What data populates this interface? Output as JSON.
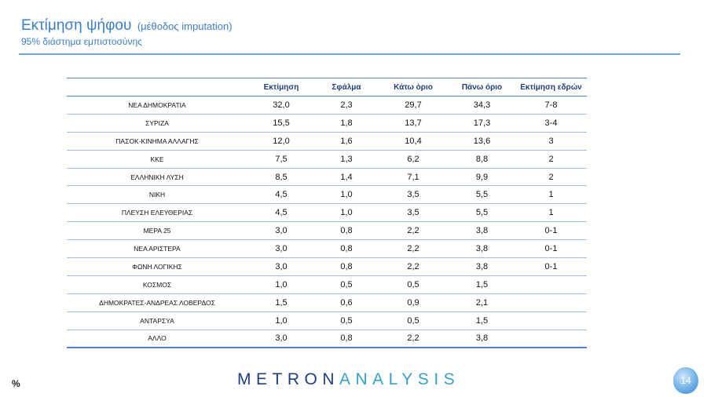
{
  "header": {
    "title": "Εκτίμηση ψήφου",
    "title_note": "(μέθοδος imputation)",
    "subtitle": "95% διάστημα εμπιστοσύνης"
  },
  "table": {
    "columns": [
      "",
      "Εκτίμηση",
      "Σφάλμα",
      "Κάτω όριο",
      "Πάνω όριο",
      "Εκτίμηση εδρών"
    ],
    "rows": [
      [
        "ΝΕΑ  ΔΗΜΟΚΡΑΤΙΑ",
        "32,0",
        "2,3",
        "29,7",
        "34,3",
        "7-8"
      ],
      [
        "ΣΥΡΙΖΑ",
        "15,5",
        "1,8",
        "13,7",
        "17,3",
        "3-4"
      ],
      [
        "ΠΑΣΟΚ-ΚΙΝΗΜΑ  ΑΛΛΑΓΗΣ",
        "12,0",
        "1,6",
        "10,4",
        "13,6",
        "3"
      ],
      [
        "ΚΚΕ",
        "7,5",
        "1,3",
        "6,2",
        "8,8",
        "2"
      ],
      [
        "ΕΛΛΗΝΙΚΗ ΛΥΣΗ",
        "8,5",
        "1,4",
        "7,1",
        "9,9",
        "2"
      ],
      [
        "ΝΙΚΗ",
        "4,5",
        "1,0",
        "3,5",
        "5,5",
        "1"
      ],
      [
        "ΠΛΕΥΣΗ ΕΛΕΥΘΕΡΙΑΣ",
        "4,5",
        "1,0",
        "3,5",
        "5,5",
        "1"
      ],
      [
        "ΜΕΡΑ 25",
        "3,0",
        "0,8",
        "2,2",
        "3,8",
        "0-1"
      ],
      [
        "ΝΕΑ ΑΡΙΣΤΕΡΑ",
        "3,0",
        "0,8",
        "2,2",
        "3,8",
        "0-1"
      ],
      [
        "ΦΩΝΗ ΛΟΓΙΚΗΣ",
        "3,0",
        "0,8",
        "2,2",
        "3,8",
        "0-1"
      ],
      [
        "ΚΟΣΜΟΣ",
        "1,0",
        "0,5",
        "0,5",
        "1,5",
        ""
      ],
      [
        "ΔΗΜΟΚΡΑΤΕΣ-ΑΝΔΡΕΑΣ ΛΟΒΕΡΔΟΣ",
        "1,5",
        "0,6",
        "0,9",
        "2,1",
        ""
      ],
      [
        "ΑΝΤΑΡΣΥΑ",
        "1,0",
        "0,5",
        "0,5",
        "1,5",
        ""
      ],
      [
        "ΑΛΛΟ",
        "3,0",
        "0,8",
        "2,2",
        "3,8",
        ""
      ]
    ]
  },
  "footer": {
    "percent_symbol": "%",
    "logo_part1": "METRON",
    "logo_part2": "ANALYSIS",
    "page_number": "14"
  }
}
